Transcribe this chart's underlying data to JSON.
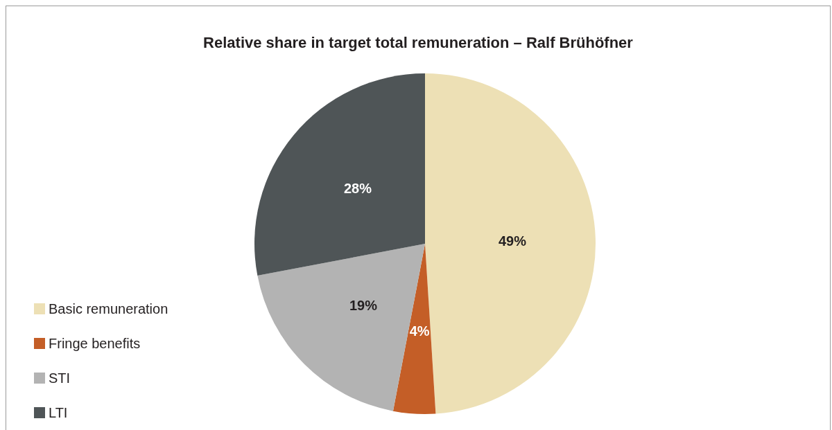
{
  "chart_data": {
    "type": "pie",
    "title": "Relative share in target total remuneration – Ralf Brühöfner",
    "categories": [
      "Basic remuneration",
      "Fringe benefits",
      "STI",
      "LTI"
    ],
    "values": [
      49,
      4,
      19,
      28
    ],
    "colors": [
      "#ede0b5",
      "#c45e27",
      "#b3b3b3",
      "#4f5557"
    ],
    "value_labels": [
      "49%",
      "4%",
      "19%",
      "28%"
    ],
    "legend": "bottom left"
  }
}
